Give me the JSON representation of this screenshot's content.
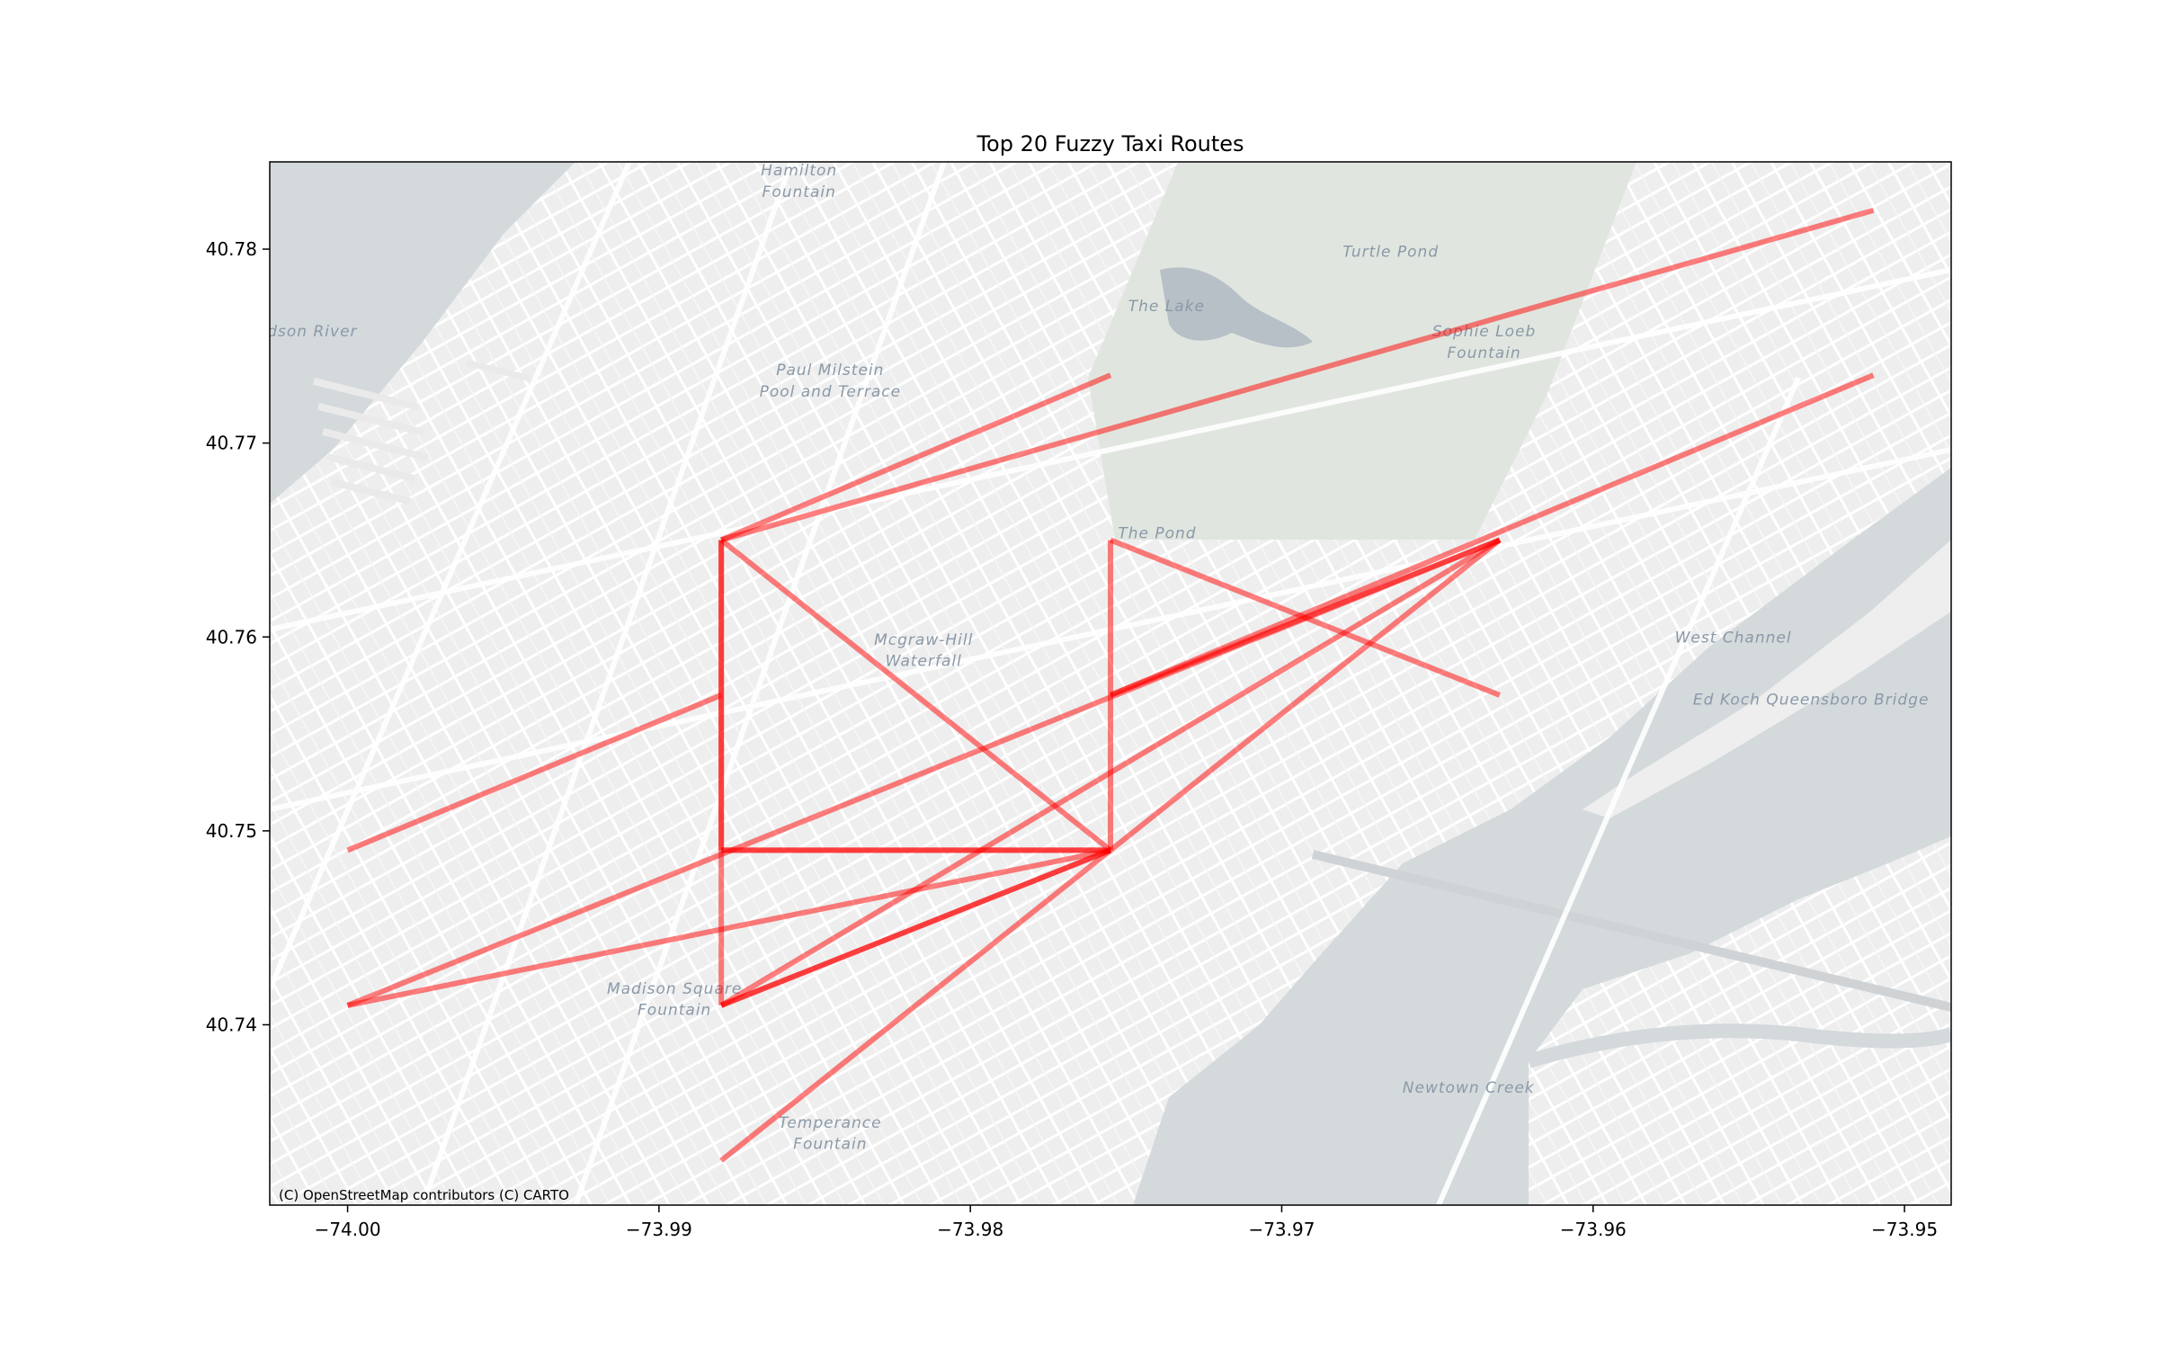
{
  "chart_data": {
    "type": "line",
    "title": "Top 20 Fuzzy Taxi Routes",
    "xlabel": "",
    "ylabel": "",
    "xlim": [
      -74.0025,
      -73.9485
    ],
    "ylim": [
      40.7307,
      40.7845
    ],
    "xticks": [
      -74.0,
      -73.99,
      -73.98,
      -73.97,
      -73.96,
      -73.95
    ],
    "xtick_labels": [
      "−74.00",
      "−73.99",
      "−73.98",
      "−73.97",
      "−73.96",
      "−73.95"
    ],
    "yticks": [
      40.74,
      40.75,
      40.76,
      40.77,
      40.78
    ],
    "ytick_labels": [
      "40.74",
      "40.75",
      "40.76",
      "40.77",
      "40.78"
    ],
    "grid": false,
    "line_color": "#ff0000",
    "line_opacity": 0.5,
    "routes": [
      {
        "from": [
          -73.988,
          40.765
        ],
        "to": [
          -73.951,
          40.782
        ]
      },
      {
        "from": [
          -73.988,
          40.765
        ],
        "to": [
          -73.9755,
          40.7735
        ]
      },
      {
        "from": [
          -73.988,
          40.765
        ],
        "to": [
          -73.988,
          40.749
        ]
      },
      {
        "from": [
          -73.988,
          40.765
        ],
        "to": [
          -73.988,
          40.749
        ]
      },
      {
        "from": [
          -73.988,
          40.765
        ],
        "to": [
          -73.9755,
          40.749
        ]
      },
      {
        "from": [
          -73.988,
          40.749
        ],
        "to": [
          -73.9755,
          40.749
        ]
      },
      {
        "from": [
          -73.988,
          40.749
        ],
        "to": [
          -73.9755,
          40.749
        ]
      },
      {
        "from": [
          -73.988,
          40.749
        ],
        "to": [
          -73.988,
          40.741
        ]
      },
      {
        "from": [
          -74.0,
          40.749
        ],
        "to": [
          -73.988,
          40.757
        ]
      },
      {
        "from": [
          -74.0,
          40.741
        ],
        "to": [
          -73.963,
          40.765
        ]
      },
      {
        "from": [
          -74.0,
          40.741
        ],
        "to": [
          -73.9755,
          40.749
        ]
      },
      {
        "from": [
          -73.988,
          40.741
        ],
        "to": [
          -73.9755,
          40.749
        ]
      },
      {
        "from": [
          -73.988,
          40.741
        ],
        "to": [
          -73.9755,
          40.749
        ]
      },
      {
        "from": [
          -73.988,
          40.741
        ],
        "to": [
          -73.963,
          40.765
        ]
      },
      {
        "from": [
          -73.988,
          40.733
        ],
        "to": [
          -73.9755,
          40.749
        ]
      },
      {
        "from": [
          -73.9755,
          40.749
        ],
        "to": [
          -73.963,
          40.765
        ]
      },
      {
        "from": [
          -73.9755,
          40.749
        ],
        "to": [
          -73.9755,
          40.765
        ]
      },
      {
        "from": [
          -73.9755,
          40.765
        ],
        "to": [
          -73.963,
          40.757
        ]
      },
      {
        "from": [
          -73.9755,
          40.757
        ],
        "to": [
          -73.963,
          40.765
        ]
      },
      {
        "from": [
          -73.9755,
          40.757
        ],
        "to": [
          -73.951,
          40.7735
        ]
      }
    ]
  },
  "map": {
    "attribution": "(C) OpenStreetMap contributors (C) CARTO",
    "water_color": "#d4d9dc",
    "land_color": "#f1f1f0",
    "park_color": "#e2e8e1",
    "street_color": "#ffffff",
    "labels": [
      {
        "text": "Hamilton",
        "lon": -73.9855,
        "lat": 40.7838
      },
      {
        "text": "Fountain",
        "lon": -73.9855,
        "lat": 40.7827
      },
      {
        "text": "Turtle Pond",
        "lon": -73.9665,
        "lat": 40.7796
      },
      {
        "text": "The Lake",
        "lon": -73.9737,
        "lat": 40.7768
      },
      {
        "text": "Sophie Loeb",
        "lon": -73.9635,
        "lat": 40.7755
      },
      {
        "text": "Fountain",
        "lon": -73.9635,
        "lat": 40.7744
      },
      {
        "text": "Paul Milstein",
        "lon": -73.9845,
        "lat": 40.7735
      },
      {
        "text": "Pool and Terrace",
        "lon": -73.9845,
        "lat": 40.7724
      },
      {
        "text": "The Pond",
        "lon": -73.974,
        "lat": 40.7651
      },
      {
        "text": "Mcgraw-Hill",
        "lon": -73.9815,
        "lat": 40.7596
      },
      {
        "text": "Waterfall",
        "lon": -73.9815,
        "lat": 40.7585
      },
      {
        "text": "Madison Square",
        "lon": -73.9895,
        "lat": 40.7416
      },
      {
        "text": "Fountain",
        "lon": -73.9895,
        "lat": 40.7405
      },
      {
        "text": "Temperance",
        "lon": -73.9845,
        "lat": 40.7347
      },
      {
        "text": "Fountain",
        "lon": -73.9845,
        "lat": 40.7336
      },
      {
        "text": "West Channel",
        "lon": -73.9555,
        "lat": 40.7597
      },
      {
        "text": "Ed Koch Queensboro Bridge",
        "lon": -73.953,
        "lat": 40.7565
      },
      {
        "text": "Newtown Creek",
        "lon": -73.964,
        "lat": 40.7365
      },
      {
        "text": "Hudson River",
        "lon": -74.0015,
        "lat": 40.7755
      }
    ]
  }
}
